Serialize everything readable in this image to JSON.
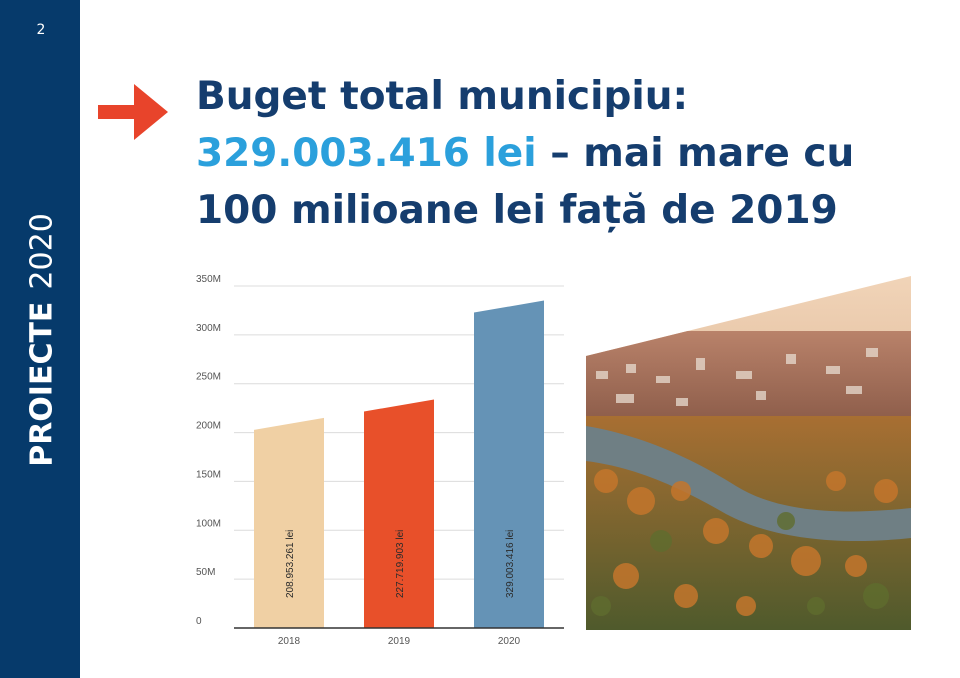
{
  "page_number": "2",
  "sidebar": {
    "label_bold": "PROIECTE",
    "label_light": "2020"
  },
  "headline": {
    "line1": "Buget total municipiu:",
    "amount": "329.003.416 lei",
    "line2_rest": " – mai mare cu",
    "line3": "100 milioane lei față de 2019"
  },
  "colors": {
    "sidebar": "#063a6b",
    "headline": "#153d6e",
    "accent": "#2ba0dc",
    "arrow": "#e8442b",
    "bars": [
      "#f0d0a4",
      "#e8502a",
      "#6593b6"
    ]
  },
  "chart_data": {
    "type": "bar",
    "categories": [
      "2018",
      "2019",
      "2020"
    ],
    "values": [
      208953261,
      227719903,
      329003416
    ],
    "value_labels": [
      "208.953.261 lei",
      "227.719.903 lei",
      "329.003.416 lei"
    ],
    "y_ticks": [
      0,
      50000000,
      100000000,
      150000000,
      200000000,
      250000000,
      300000000,
      350000000
    ],
    "y_tick_labels": [
      "0",
      "50M",
      "100M",
      "150M",
      "200M",
      "250M",
      "300M",
      "350M"
    ],
    "ylim": [
      0,
      350000000
    ],
    "grid": true,
    "title": "",
    "xlabel": "",
    "ylabel": ""
  },
  "photo": {
    "description_icon": "city-aerial-photo-icon"
  }
}
